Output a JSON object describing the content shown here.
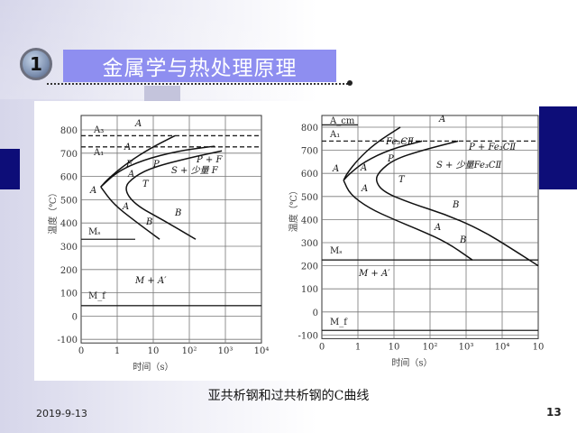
{
  "slide": {
    "section_number": "1",
    "title": "金属学与热处理原理",
    "caption": "亚共析钢和过共析钢的C曲线",
    "date": "2019-9-13",
    "page_number": "13",
    "colors": {
      "title_bar": "#8e8ef0",
      "accent_navy": "#0d0d78"
    }
  },
  "diagrams": [
    {
      "ylabel": "温度（℃）",
      "xlabel": "时间（s）",
      "yticks": [
        "800",
        "700",
        "600",
        "500",
        "400",
        "300",
        "200",
        "100",
        "0",
        "-100"
      ],
      "xticks": [
        "0",
        "1",
        "10",
        "10²",
        "10³",
        "10⁴"
      ],
      "line_labels": [
        "A₃",
        "A₁",
        "Mₛ",
        "M_f"
      ],
      "phase_labels": [
        "A",
        "A",
        "A",
        "F",
        "A",
        "P",
        "P + F",
        "S + 少量 F",
        "T",
        "A",
        "B",
        "B",
        "M + A′"
      ],
      "critical_temps": {
        "A3": 775,
        "A1": 727,
        "Ms": 330,
        "Mf": 45
      },
      "curves": [
        {
          "points": [
            [
              40,
              775
            ],
            [
              8,
              720
            ],
            [
              2,
              660
            ],
            [
              0.6,
              595
            ],
            [
              0.35,
              555
            ]
          ]
        },
        {
          "points": [
            [
              500,
              730
            ],
            [
              50,
              710
            ],
            [
              5,
              670
            ],
            [
              1,
              620
            ],
            [
              0.35,
              555
            ]
          ]
        },
        {
          "points": [
            [
              0.35,
              555
            ],
            [
              0.8,
              480
            ],
            [
              3,
              410
            ],
            [
              15,
              330
            ]
          ]
        },
        {
          "points": [
            [
              800,
              710
            ],
            [
              100,
              680
            ],
            [
              10,
              640
            ],
            [
              3,
              600
            ],
            [
              1.5,
              550
            ],
            [
              3,
              480
            ],
            [
              20,
              410
            ],
            [
              150,
              330
            ]
          ]
        }
      ]
    },
    {
      "ylabel": "温度（℃）",
      "xlabel": "时间（s）",
      "yticks": [
        "800",
        "700",
        "600",
        "500",
        "400",
        "300",
        "200",
        "100",
        "0",
        "-100"
      ],
      "xticks": [
        "0",
        "1",
        "10",
        "10²",
        "10³",
        "10⁴",
        "10"
      ],
      "line_labels": [
        "A_cm",
        "A₁",
        "Mₛ",
        "M_f"
      ],
      "phase_labels": [
        "A",
        "A",
        "A",
        "Fe₃CⅡ",
        "A",
        "P",
        "P + Fe₃CⅡ",
        "S + 少量Fe₃CⅡ",
        "T",
        "B",
        "A",
        "B",
        "M + A′"
      ],
      "critical_temps": {
        "Acm": 810,
        "A1": 740,
        "Ms": 225,
        "Mf": -80
      },
      "curves": [
        {
          "points": [
            [
              15,
              800
            ],
            [
              3,
              730
            ],
            [
              1,
              660
            ],
            [
              0.5,
              600
            ],
            [
              0.4,
              570
            ]
          ]
        },
        {
          "points": [
            [
              60,
              740
            ],
            [
              8,
              705
            ],
            [
              1.5,
              650
            ],
            [
              0.6,
              600
            ],
            [
              0.4,
              570
            ]
          ]
        },
        {
          "points": [
            [
              600,
              740
            ],
            [
              60,
              700
            ],
            [
              10,
              660
            ],
            [
              4,
              610
            ],
            [
              3,
              570
            ],
            [
              5,
              520
            ],
            [
              30,
              470
            ],
            [
              300,
              420
            ],
            [
              3000,
              350
            ],
            [
              20000,
              270
            ],
            [
              100000,
              200
            ]
          ]
        },
        {
          "points": [
            [
              0.4,
              570
            ],
            [
              0.6,
              510
            ],
            [
              2,
              450
            ],
            [
              10,
              400
            ],
            [
              60,
              350
            ],
            [
              300,
              300
            ],
            [
              1500,
              225
            ]
          ]
        }
      ]
    }
  ]
}
